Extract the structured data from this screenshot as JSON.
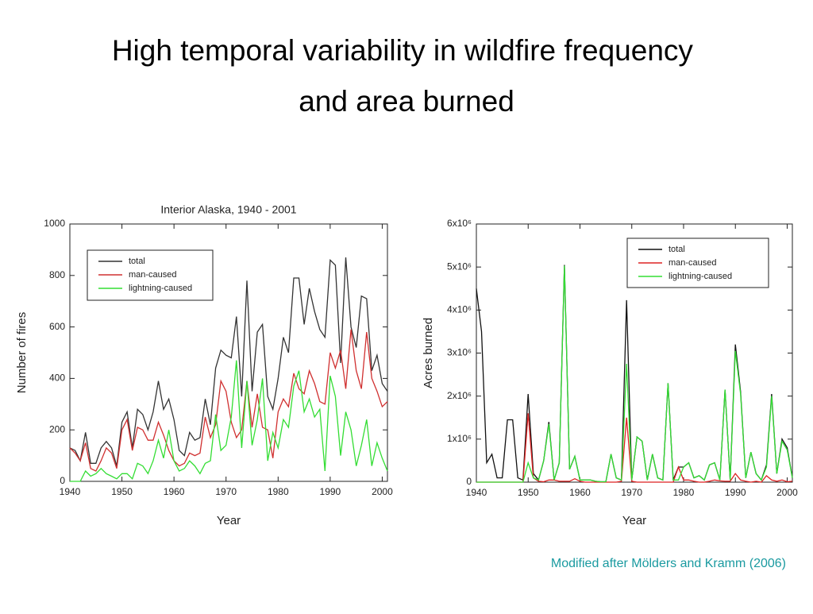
{
  "title": "High temporal variability in wildfire frequency and area burned",
  "footnote": "Modified after Mölders and Kramm (2006)",
  "chart_data": [
    {
      "type": "line",
      "title": "Interior Alaska, 1940 - 2001",
      "x_label": "Year",
      "y_label": "Number of fires",
      "x": [
        1940,
        1941,
        1942,
        1943,
        1944,
        1945,
        1946,
        1947,
        1948,
        1949,
        1950,
        1951,
        1952,
        1953,
        1954,
        1955,
        1956,
        1957,
        1958,
        1959,
        1960,
        1961,
        1962,
        1963,
        1964,
        1965,
        1966,
        1967,
        1968,
        1969,
        1970,
        1971,
        1972,
        1973,
        1974,
        1975,
        1976,
        1977,
        1978,
        1979,
        1980,
        1981,
        1982,
        1983,
        1984,
        1985,
        1986,
        1987,
        1988,
        1989,
        1990,
        1991,
        1992,
        1993,
        1994,
        1995,
        1996,
        1997,
        1998,
        1999,
        2000,
        2001
      ],
      "xlim": [
        1940,
        2001
      ],
      "xticks": [
        1940,
        1950,
        1960,
        1970,
        1980,
        1990,
        2000
      ],
      "ylim": [
        0,
        1000
      ],
      "yticks": [
        0,
        200,
        400,
        600,
        800,
        1000
      ],
      "legend": "upper left",
      "series": [
        {
          "name": "total",
          "color": "#333333",
          "values": [
            130,
            120,
            80,
            190,
            70,
            70,
            130,
            155,
            130,
            60,
            230,
            270,
            130,
            280,
            260,
            200,
            270,
            390,
            280,
            320,
            240,
            120,
            100,
            190,
            160,
            170,
            320,
            220,
            440,
            510,
            490,
            480,
            640,
            330,
            780,
            350,
            580,
            610,
            330,
            280,
            400,
            560,
            500,
            790,
            790,
            610,
            750,
            660,
            590,
            560,
            860,
            840,
            460,
            870,
            600,
            520,
            720,
            710,
            430,
            490,
            380,
            350
          ]
        },
        {
          "name": "man-caused",
          "color": "#d03030",
          "values": [
            130,
            110,
            80,
            150,
            50,
            40,
            80,
            130,
            110,
            50,
            200,
            240,
            120,
            210,
            200,
            160,
            160,
            230,
            180,
            120,
            80,
            60,
            70,
            110,
            100,
            110,
            250,
            170,
            220,
            390,
            350,
            230,
            170,
            200,
            390,
            210,
            340,
            210,
            200,
            90,
            270,
            320,
            290,
            420,
            360,
            340,
            430,
            380,
            310,
            300,
            500,
            440,
            510,
            360,
            590,
            430,
            360,
            580,
            400,
            350,
            290,
            310
          ]
        },
        {
          "name": "lightning-caused",
          "color": "#33dd33",
          "values": [
            0,
            0,
            0,
            40,
            20,
            30,
            50,
            30,
            20,
            10,
            30,
            30,
            10,
            70,
            60,
            30,
            80,
            160,
            90,
            200,
            80,
            40,
            50,
            80,
            60,
            30,
            70,
            80,
            260,
            120,
            140,
            250,
            470,
            130,
            390,
            140,
            240,
            400,
            80,
            190,
            130,
            240,
            210,
            370,
            430,
            270,
            320,
            250,
            280,
            40,
            410,
            330,
            100,
            270,
            200,
            60,
            140,
            240,
            60,
            150,
            90,
            40
          ]
        }
      ]
    },
    {
      "type": "line",
      "x_label": "Year",
      "y_label": "Acres burned",
      "x": [
        1940,
        1941,
        1942,
        1943,
        1944,
        1945,
        1946,
        1947,
        1948,
        1949,
        1950,
        1951,
        1952,
        1953,
        1954,
        1955,
        1956,
        1957,
        1958,
        1959,
        1960,
        1961,
        1962,
        1963,
        1964,
        1965,
        1966,
        1967,
        1968,
        1969,
        1970,
        1971,
        1972,
        1973,
        1974,
        1975,
        1976,
        1977,
        1978,
        1979,
        1980,
        1981,
        1982,
        1983,
        1984,
        1985,
        1986,
        1987,
        1988,
        1989,
        1990,
        1991,
        1992,
        1993,
        1994,
        1995,
        1996,
        1997,
        1998,
        1999,
        2000,
        2001
      ],
      "xlim": [
        1940,
        2001
      ],
      "xticks": [
        1940,
        1950,
        1960,
        1970,
        1980,
        1990,
        2000
      ],
      "ylim": [
        0,
        6000000
      ],
      "yticks": [
        0,
        {
          "value": 1000000,
          "label": "1x10⁶"
        },
        {
          "value": 2000000,
          "label": "2x10⁶"
        },
        {
          "value": 3000000,
          "label": "3x10⁶"
        },
        {
          "value": 4000000,
          "label": "4x10⁶"
        },
        {
          "value": 5000000,
          "label": "5x10⁶"
        },
        {
          "value": 6000000,
          "label": "6x10⁶"
        }
      ],
      "legend": "upper right",
      "series": [
        {
          "name": "total",
          "color": "#111111",
          "values": [
            4500000,
            3500000,
            450000,
            650000,
            100000,
            100000,
            1450000,
            1450000,
            100000,
            50000,
            2050000,
            200000,
            50000,
            500000,
            1400000,
            50000,
            450000,
            5050000,
            300000,
            600000,
            50000,
            50000,
            50000,
            20000,
            10000,
            10000,
            650000,
            100000,
            50000,
            4230000,
            50000,
            1050000,
            950000,
            50000,
            650000,
            100000,
            50000,
            2300000,
            50000,
            350000,
            350000,
            450000,
            100000,
            150000,
            50000,
            400000,
            450000,
            50000,
            2150000,
            50000,
            3200000,
            2100000,
            100000,
            700000,
            200000,
            50000,
            400000,
            2050000,
            200000,
            1000000,
            800000,
            100000
          ]
        },
        {
          "name": "man-caused",
          "color": "#dd2222",
          "values": [
            0,
            0,
            0,
            0,
            0,
            0,
            0,
            0,
            0,
            0,
            1600000,
            100000,
            20000,
            10000,
            50000,
            50000,
            20000,
            20000,
            20000,
            80000,
            20000,
            0,
            0,
            0,
            0,
            0,
            0,
            0,
            20000,
            1500000,
            20000,
            0,
            0,
            0,
            0,
            0,
            0,
            0,
            0,
            350000,
            50000,
            50000,
            20000,
            0,
            0,
            20000,
            50000,
            30000,
            20000,
            20000,
            200000,
            50000,
            20000,
            0,
            20000,
            0,
            150000,
            50000,
            20000,
            50000,
            10000,
            20000
          ]
        },
        {
          "name": "lightning-caused",
          "color": "#33dd33",
          "values": [
            0,
            0,
            0,
            0,
            0,
            0,
            0,
            0,
            0,
            0,
            450000,
            100000,
            50000,
            500000,
            1350000,
            50000,
            450000,
            5030000,
            300000,
            600000,
            50000,
            50000,
            50000,
            20000,
            10000,
            10000,
            650000,
            100000,
            50000,
            2750000,
            50000,
            1050000,
            950000,
            50000,
            650000,
            100000,
            50000,
            2300000,
            50000,
            50000,
            350000,
            450000,
            100000,
            150000,
            50000,
            400000,
            450000,
            50000,
            2150000,
            50000,
            3050000,
            2050000,
            100000,
            700000,
            200000,
            50000,
            350000,
            2000000,
            200000,
            950000,
            750000,
            100000
          ]
        }
      ]
    }
  ]
}
